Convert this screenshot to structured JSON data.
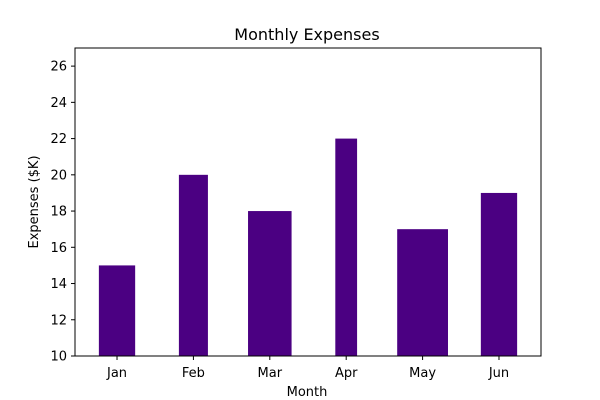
{
  "chart_data": {
    "type": "bar",
    "title": "Monthly Expenses",
    "xlabel": "Month",
    "ylabel": "Expenses ($K)",
    "categories": [
      "Jan",
      "Feb",
      "Mar",
      "Apr",
      "May",
      "Jun"
    ],
    "values": [
      15,
      20,
      18,
      22,
      17,
      19
    ],
    "ylim": [
      10,
      27
    ],
    "yticks": [
      10,
      12,
      14,
      16,
      18,
      20,
      22,
      24,
      26
    ],
    "bar_color": "#4b0082",
    "bar_width_fraction": [
      0.5,
      0.4,
      0.6,
      0.3,
      0.7,
      0.5
    ],
    "grid": false,
    "legend": "none"
  }
}
